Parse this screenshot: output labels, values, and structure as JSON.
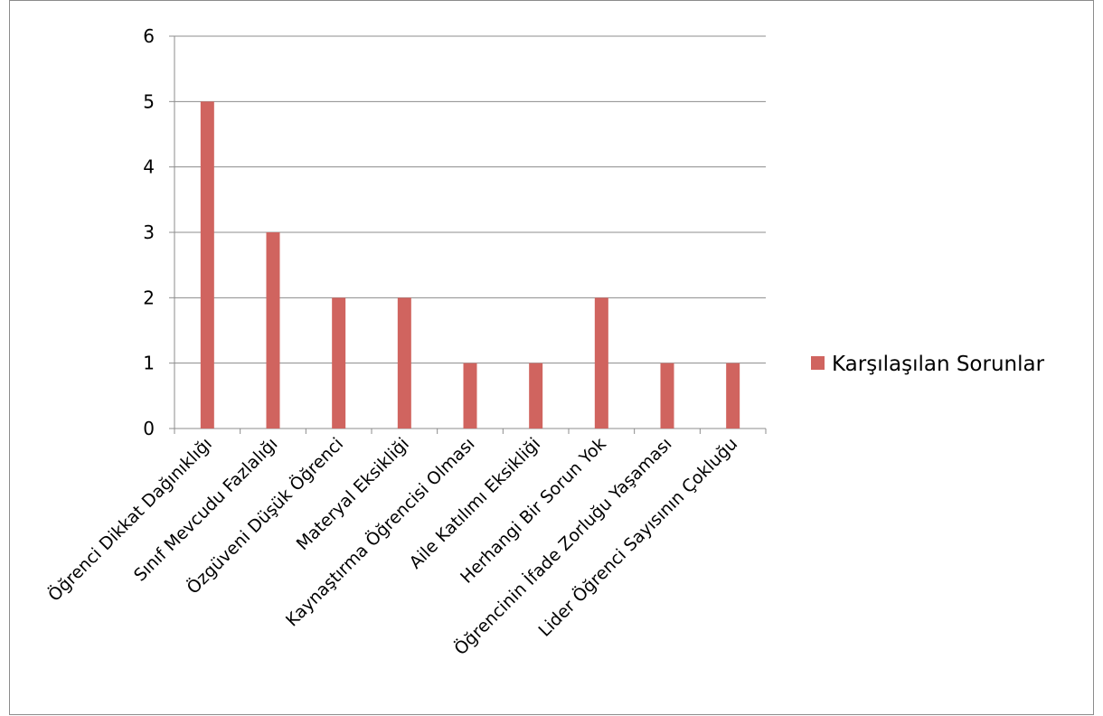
{
  "chart_data": {
    "type": "bar",
    "categories": [
      "Öğrenci Dikkat Dağınıklığı",
      "Sınıf Mevcudu Fazlalığı",
      "Özgüveni Düşük Öğrenci",
      "Materyal Eksikliği",
      "Kaynaştırma Öğrencisi Olması",
      "Aile Katılımı Eksikliği",
      "Herhangi Bir Sorun Yok",
      "Öğrencinin İfade Zorluğu Yaşaması",
      "Lider Öğrenci Sayısının Çokluğu"
    ],
    "series": [
      {
        "name": "Karşılaşılan Sorunlar",
        "values": [
          5,
          3,
          2,
          2,
          1,
          1,
          2,
          1,
          1
        ],
        "color": "#d0645f"
      }
    ],
    "ylim": [
      0,
      6
    ],
    "yticks": [
      0,
      1,
      2,
      3,
      4,
      5,
      6
    ],
    "grid": true,
    "legend": "right"
  }
}
